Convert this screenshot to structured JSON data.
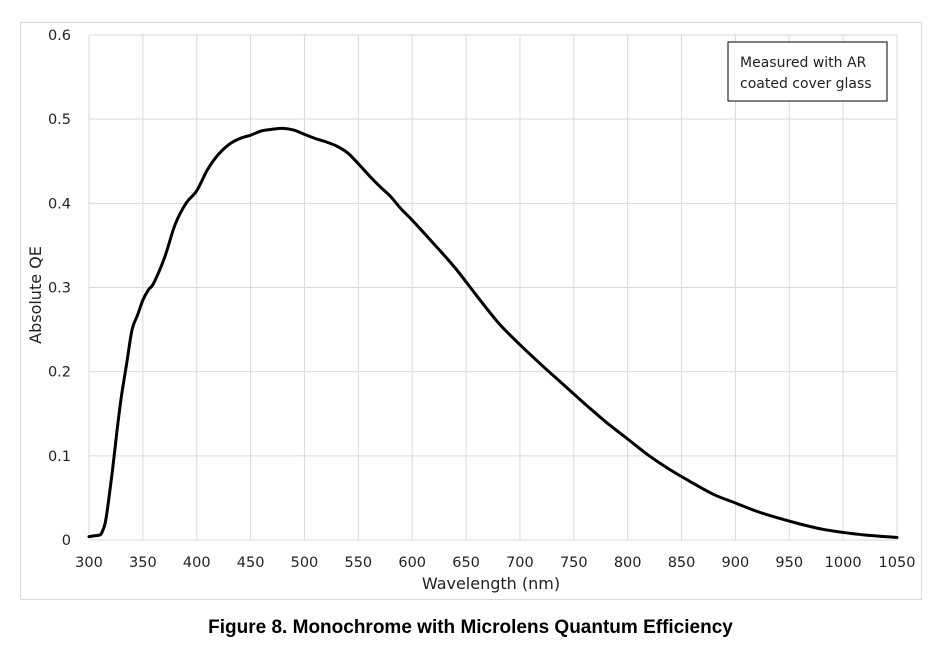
{
  "caption": "Figure 8. Monochrome with Microlens Quantum Efficiency",
  "chart_data": {
    "type": "line",
    "title": "",
    "xlabel": "Wavelength  (nm)",
    "ylabel": "Absolute QE",
    "xlim": [
      300,
      1050
    ],
    "ylim": [
      0,
      0.6
    ],
    "x_ticks": [
      "300",
      "350",
      "400",
      "450",
      "500",
      "550",
      "600",
      "650",
      "700",
      "750",
      "800",
      "850",
      "900",
      "950",
      "1000",
      "1050"
    ],
    "y_ticks": [
      "0",
      "0.1",
      "0.2",
      "0.3",
      "0.4",
      "0.5",
      "0.6"
    ],
    "grid": true,
    "legend": "none",
    "annotation": [
      "Measured with AR",
      "coated cover glass"
    ],
    "series": [
      {
        "color": "#000000",
        "x": [
          300,
          305,
          310,
          312,
          315,
          318,
          322,
          326,
          330,
          335,
          340,
          345,
          350,
          355,
          360,
          370,
          380,
          390,
          400,
          410,
          420,
          430,
          440,
          450,
          460,
          470,
          480,
          490,
          500,
          510,
          520,
          530,
          540,
          550,
          560,
          570,
          580,
          590,
          600,
          620,
          640,
          660,
          680,
          700,
          720,
          740,
          760,
          780,
          800,
          820,
          840,
          860,
          880,
          900,
          920,
          940,
          960,
          980,
          1000,
          1020,
          1050
        ],
        "y": [
          0.004,
          0.005,
          0.006,
          0.009,
          0.02,
          0.045,
          0.085,
          0.13,
          0.17,
          0.21,
          0.25,
          0.267,
          0.285,
          0.297,
          0.305,
          0.335,
          0.375,
          0.4,
          0.415,
          0.44,
          0.458,
          0.47,
          0.477,
          0.481,
          0.486,
          0.488,
          0.489,
          0.487,
          0.482,
          0.477,
          0.473,
          0.468,
          0.46,
          0.447,
          0.433,
          0.42,
          0.408,
          0.393,
          0.38,
          0.352,
          0.323,
          0.29,
          0.258,
          0.232,
          0.208,
          0.185,
          0.162,
          0.14,
          0.12,
          0.1,
          0.083,
          0.068,
          0.054,
          0.044,
          0.034,
          0.026,
          0.019,
          0.013,
          0.009,
          0.006,
          0.003
        ]
      }
    ]
  }
}
